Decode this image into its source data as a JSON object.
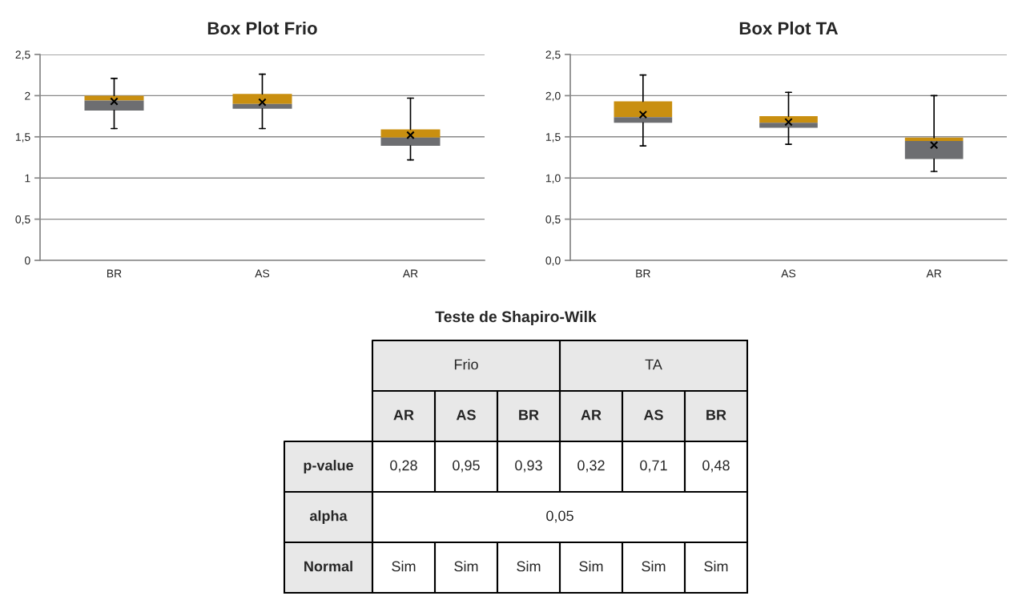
{
  "chart_data": [
    {
      "type": "box",
      "title": "Box Plot Frio",
      "categories": [
        "BR",
        "AS",
        "AR"
      ],
      "color": "#c98f10",
      "colors": [
        "#6d6e71",
        "#6d6e71",
        "#6d6e71"
      ],
      "boxes": [
        {
          "low": 1.6,
          "q1": 1.82,
          "median": 1.94,
          "q3": 2.0,
          "high": 2.21,
          "mean": 1.93
        },
        {
          "low": 1.6,
          "q1": 1.84,
          "median": 1.9,
          "q3": 2.02,
          "high": 2.26,
          "mean": 1.92
        },
        {
          "low": 1.22,
          "q1": 1.39,
          "median": 1.49,
          "q3": 1.59,
          "high": 1.97,
          "mean": 1.52
        }
      ],
      "ylim": [
        0,
        2.5
      ],
      "yticks": [
        0,
        {
          "value": 0.5,
          "label": "0,5"
        },
        1,
        {
          "value": 1.5,
          "label": "1,5"
        },
        2,
        {
          "value": 2.5,
          "label": "2,5"
        }
      ],
      "grid": "y",
      "marker": "cross"
    },
    {
      "type": "box",
      "title": "Box Plot TA",
      "categories": [
        "BR",
        "AS",
        "AR"
      ],
      "color": "#c98f10",
      "colors": [
        "#6d6e71",
        "#6d6e71",
        "#6d6e71"
      ],
      "boxes": [
        {
          "low": 1.39,
          "q1": 1.67,
          "median": 1.74,
          "q3": 1.93,
          "high": 2.25,
          "mean": 1.77
        },
        {
          "low": 1.41,
          "q1": 1.61,
          "median": 1.67,
          "q3": 1.75,
          "high": 2.04,
          "mean": 1.68
        },
        {
          "low": 1.08,
          "q1": 1.23,
          "median": 1.45,
          "q3": 1.49,
          "high": 2.0,
          "mean": 1.4
        }
      ],
      "ylim": [
        0,
        2.5
      ],
      "yticks": [
        {
          "value": 0,
          "label": "0,0"
        },
        {
          "value": 0.5,
          "label": "0,5"
        },
        {
          "value": 1,
          "label": "1,0"
        },
        {
          "value": 1.5,
          "label": "1,5"
        },
        {
          "value": 2,
          "label": "2,0"
        },
        {
          "value": 2.5,
          "label": "2,5"
        }
      ],
      "grid": "y",
      "marker": "cross"
    },
    {
      "type": "other",
      "title": "Teste de Shapiro-Wilk",
      "annotations": [
        "Frio",
        "TA"
      ],
      "categories": [
        "AR",
        "AS",
        "BR",
        "AR",
        "AS",
        "BR"
      ],
      "y_categories": [
        "p-value",
        "alpha",
        "Normal"
      ],
      "cell_labels": [
        [
          "0,28",
          "0,95",
          "0,93",
          "0,32",
          "0,71",
          "0,48"
        ],
        [
          "0,05",
          null,
          null,
          null,
          null,
          null
        ],
        [
          "Sim",
          "Sim",
          "Sim",
          "Sim",
          "Sim",
          "Sim"
        ]
      ]
    }
  ]
}
